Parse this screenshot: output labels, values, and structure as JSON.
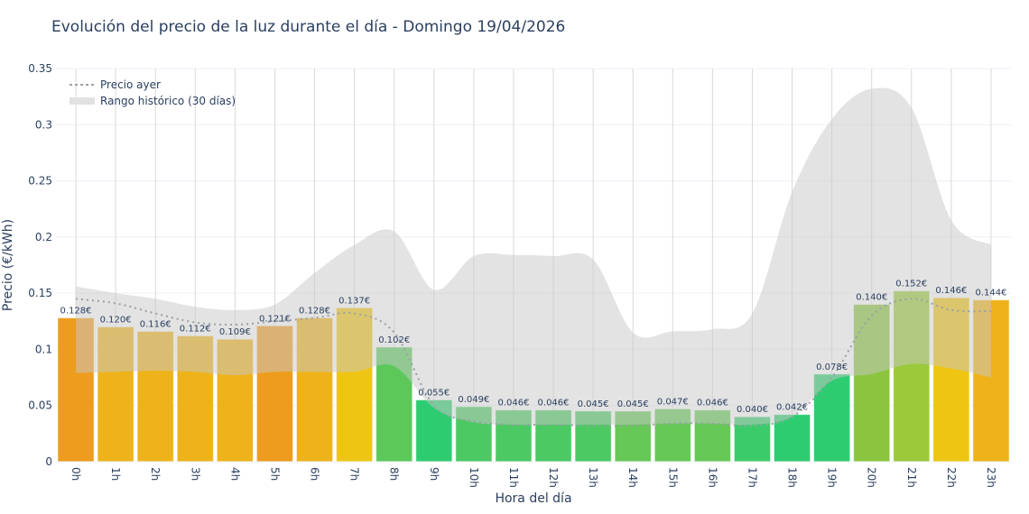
{
  "chart_data": {
    "type": "bar",
    "title": "Evolución del precio de la luz durante el día - Domingo 19/04/2026",
    "xlabel": "Hora del día",
    "ylabel": "Precio (€/kWh)",
    "ylim": [
      0,
      0.35
    ],
    "yticks": [
      "0",
      "0.05",
      "0.1",
      "0.15",
      "0.2",
      "0.25",
      "0.3",
      "0.35"
    ],
    "ytick_values": [
      0,
      0.05,
      0.1,
      0.15,
      0.2,
      0.25,
      0.3,
      0.35
    ],
    "grid": true,
    "legend_position": "top-left",
    "categories": [
      "0h",
      "1h",
      "2h",
      "3h",
      "4h",
      "5h",
      "6h",
      "7h",
      "8h",
      "9h",
      "10h",
      "11h",
      "12h",
      "13h",
      "14h",
      "15h",
      "16h",
      "17h",
      "18h",
      "19h",
      "20h",
      "21h",
      "22h",
      "23h"
    ],
    "values": [
      0.128,
      0.12,
      0.116,
      0.112,
      0.109,
      0.121,
      0.128,
      0.137,
      0.102,
      0.055,
      0.049,
      0.046,
      0.046,
      0.045,
      0.045,
      0.047,
      0.046,
      0.04,
      0.042,
      0.078,
      0.14,
      0.152,
      0.146,
      0.144
    ],
    "data_labels": [
      "0.128€",
      "0.120€",
      "0.116€",
      "0.112€",
      "0.109€",
      "0.121€",
      "0.128€",
      "0.137€",
      "0.102€",
      "0.055€",
      "0.049€",
      "0.046€",
      "0.046€",
      "0.045€",
      "0.045€",
      "0.047€",
      "0.046€",
      "0.040€",
      "0.042€",
      "0.078€",
      "0.140€",
      "0.152€",
      "0.146€",
      "0.144€"
    ],
    "bar_colors": [
      "#ee9c1e",
      "#eeb31a",
      "#eeb31a",
      "#eeb31a",
      "#eeb31a",
      "#ee9c1e",
      "#eeb31a",
      "#eec512",
      "#5cc85a",
      "#2ecc71",
      "#4dc963",
      "#4dc963",
      "#4dc963",
      "#4dc963",
      "#66c857",
      "#66c857",
      "#66c857",
      "#3ccb6a",
      "#2ecc71",
      "#2ecc71",
      "#8bc53f",
      "#9bc93a",
      "#eec512",
      "#eeb31a"
    ],
    "series": [
      {
        "name": "Precio ayer",
        "style": "dotted-line",
        "color": "#9aa0a6",
        "values": [
          0.145,
          0.141,
          0.132,
          0.124,
          0.122,
          0.125,
          0.128,
          0.132,
          0.115,
          0.05,
          0.036,
          0.033,
          0.033,
          0.032,
          0.032,
          0.034,
          0.034,
          0.032,
          0.04,
          0.075,
          0.13,
          0.145,
          0.135,
          0.134
        ]
      },
      {
        "name": "Rango histórico (30 días)",
        "style": "band",
        "color": "#d3d3d3",
        "upper": [
          0.156,
          0.15,
          0.145,
          0.138,
          0.135,
          0.14,
          0.168,
          0.193,
          0.205,
          0.153,
          0.183,
          0.184,
          0.183,
          0.18,
          0.115,
          0.116,
          0.118,
          0.132,
          0.24,
          0.305,
          0.332,
          0.315,
          0.215,
          0.193
        ],
        "lower": [
          0.079,
          0.08,
          0.081,
          0.08,
          0.077,
          0.08,
          0.08,
          0.08,
          0.085,
          0.048,
          0.035,
          0.033,
          0.033,
          0.033,
          0.033,
          0.034,
          0.034,
          0.033,
          0.04,
          0.072,
          0.078,
          0.087,
          0.083,
          0.075
        ]
      }
    ]
  }
}
